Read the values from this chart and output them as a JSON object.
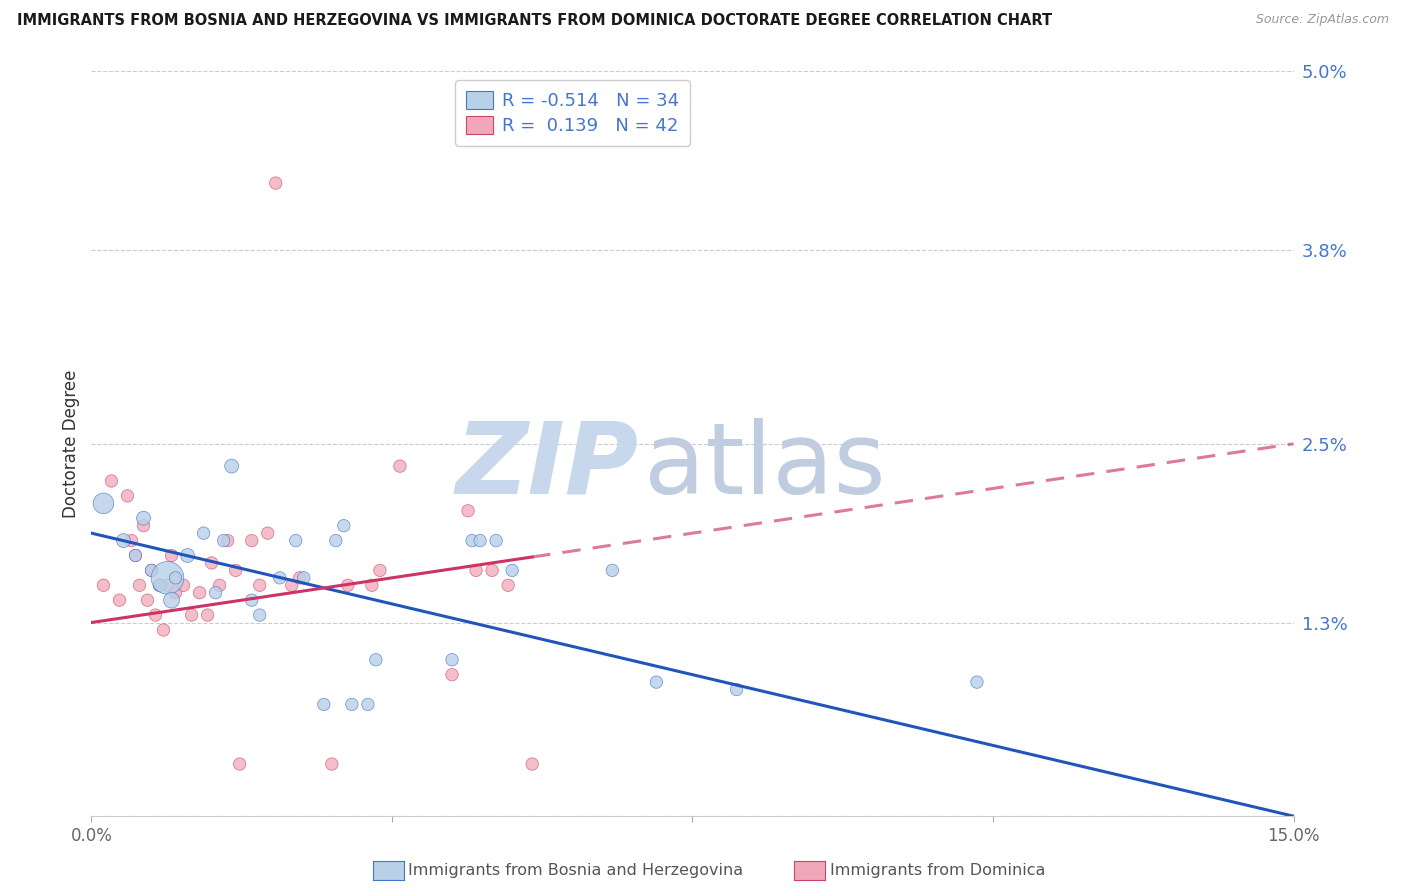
{
  "title": "IMMIGRANTS FROM BOSNIA AND HERZEGOVINA VS IMMIGRANTS FROM DOMINICA DOCTORATE DEGREE CORRELATION CHART",
  "source": "Source: ZipAtlas.com",
  "ylabel": "Doctorate Degree",
  "yticks": [
    0.0,
    1.3,
    2.5,
    3.8,
    5.0
  ],
  "ytick_labels": [
    "",
    "1.3%",
    "2.5%",
    "3.8%",
    "5.0%"
  ],
  "xticks": [
    0,
    3.75,
    7.5,
    11.25,
    15
  ],
  "xtick_labels": [
    "0.0%",
    "",
    "",
    "",
    "15.0%"
  ],
  "xlim": [
    0.0,
    15.0
  ],
  "ylim": [
    0.0,
    5.0
  ],
  "legend_blue_r": "-0.514",
  "legend_blue_n": "34",
  "legend_pink_r": " 0.139",
  "legend_pink_n": "42",
  "blue_fill": "#b8d0e8",
  "blue_edge": "#4477cc",
  "pink_fill": "#f0a8b8",
  "pink_edge": "#cc4466",
  "trend_blue_color": "#2255bb",
  "trend_pink_color": "#cc3366",
  "tick_color": "#4477cc",
  "watermark_zip_color": "#c8d8ec",
  "watermark_atlas_color": "#c0cce0",
  "blue_legend_label": "Immigrants from Bosnia and Herzegovina",
  "pink_legend_label": "Immigrants from Dominica",
  "blue_trend_x0": 0.0,
  "blue_trend_y0": 1.9,
  "blue_trend_x1": 15.0,
  "blue_trend_y1": 0.0,
  "pink_trend_x0": 0.0,
  "pink_trend_y0": 1.3,
  "pink_trend_x1": 15.0,
  "pink_trend_y1": 2.5,
  "pink_solid_end": 5.5,
  "blue_x": [
    0.15,
    0.4,
    0.55,
    0.65,
    0.75,
    0.85,
    0.95,
    1.0,
    1.05,
    1.2,
    1.4,
    1.55,
    1.65,
    1.75,
    2.0,
    2.1,
    2.35,
    2.55,
    2.65,
    2.9,
    3.05,
    3.15,
    3.25,
    3.45,
    3.55,
    4.5,
    4.75,
    4.85,
    5.05,
    5.25,
    6.5,
    7.05,
    8.05,
    11.05
  ],
  "blue_y": [
    2.1,
    1.85,
    1.75,
    2.0,
    1.65,
    1.55,
    1.6,
    1.45,
    1.6,
    1.75,
    1.9,
    1.5,
    1.85,
    2.35,
    1.45,
    1.35,
    1.6,
    1.85,
    1.6,
    0.75,
    1.85,
    1.95,
    0.75,
    0.75,
    1.05,
    1.05,
    1.85,
    1.85,
    1.85,
    1.65,
    1.65,
    0.9,
    0.85,
    0.9
  ],
  "blue_s": [
    220,
    100,
    80,
    100,
    80,
    80,
    550,
    130,
    80,
    100,
    80,
    80,
    80,
    100,
    80,
    80,
    80,
    80,
    80,
    80,
    80,
    80,
    80,
    80,
    80,
    80,
    80,
    80,
    80,
    80,
    80,
    80,
    80,
    80
  ],
  "pink_x": [
    0.15,
    0.25,
    0.35,
    0.45,
    0.5,
    0.55,
    0.6,
    0.65,
    0.7,
    0.75,
    0.8,
    0.85,
    0.9,
    0.95,
    1.0,
    1.05,
    1.15,
    1.25,
    1.35,
    1.45,
    1.5,
    1.6,
    1.7,
    1.8,
    2.0,
    2.1,
    2.2,
    2.5,
    2.6,
    3.0,
    3.2,
    3.5,
    3.6,
    4.5,
    4.7,
    4.8,
    5.0,
    5.2,
    5.5,
    1.85,
    2.3,
    3.85
  ],
  "pink_y": [
    1.55,
    2.25,
    1.45,
    2.15,
    1.85,
    1.75,
    1.55,
    1.95,
    1.45,
    1.65,
    1.35,
    1.55,
    1.25,
    1.55,
    1.75,
    1.5,
    1.55,
    1.35,
    1.5,
    1.35,
    1.7,
    1.55,
    1.85,
    1.65,
    1.85,
    1.55,
    1.9,
    1.55,
    1.6,
    0.35,
    1.55,
    1.55,
    1.65,
    0.95,
    2.05,
    1.65,
    1.65,
    1.55,
    0.35,
    0.35,
    4.25,
    2.35
  ],
  "pink_s": [
    80,
    80,
    80,
    80,
    80,
    80,
    80,
    80,
    80,
    80,
    80,
    80,
    80,
    80,
    80,
    80,
    80,
    80,
    80,
    80,
    80,
    80,
    80,
    80,
    80,
    80,
    80,
    80,
    80,
    80,
    80,
    80,
    80,
    80,
    80,
    80,
    80,
    80,
    80,
    80,
    80,
    80
  ]
}
